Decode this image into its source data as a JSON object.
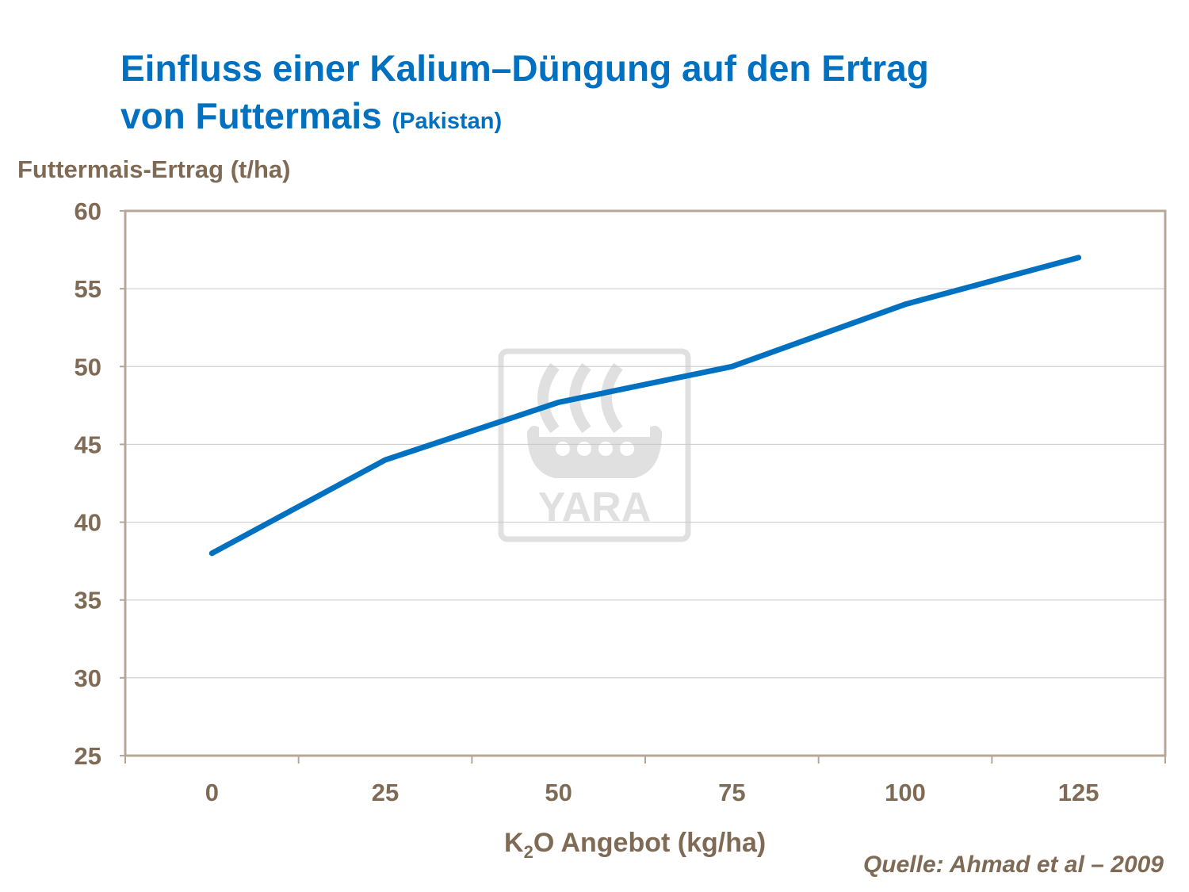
{
  "title_line1": "Einfluss einer Kalium–Düngung auf den Ertrag",
  "title_line2": "von Futtermais",
  "title_suffix": "(Pakistan)",
  "source": "Quelle:  Ahmad et al – 2009",
  "watermark": {
    "text": "YARA",
    "color": "#E0E0E0"
  },
  "chart_data": {
    "type": "line",
    "ylabel": "Futtermais-Ertrag (t/ha)",
    "xlabel_prefix": "K",
    "xlabel_sub": "2",
    "xlabel_rest": "O Angebot (kg/ha)",
    "categories": [
      "0",
      "25",
      "50",
      "75",
      "100",
      "125"
    ],
    "series": [
      {
        "values": [
          38,
          44,
          47.7,
          50,
          54,
          57
        ],
        "color": "#0070C0"
      }
    ],
    "ylim": [
      25,
      60
    ],
    "yticks": [
      25,
      30,
      35,
      40,
      45,
      50,
      55,
      60
    ],
    "grid": true,
    "legend": "none"
  }
}
